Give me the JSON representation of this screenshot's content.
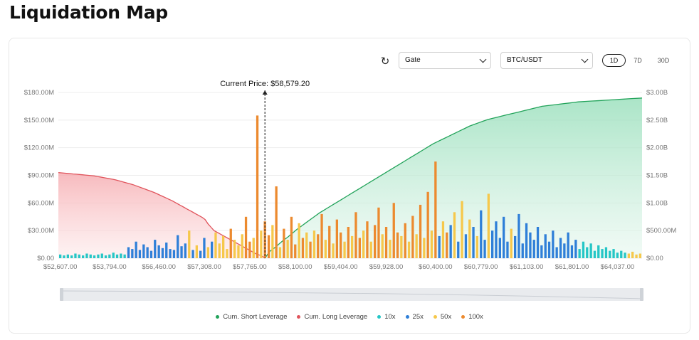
{
  "page": {
    "title": "Liquidation Map"
  },
  "controls": {
    "exchange": "Gate",
    "pair": "BTC/USDT",
    "ranges": [
      "1D",
      "7D",
      "30D"
    ],
    "active_range": "1D"
  },
  "colors": {
    "short": "#22a35a",
    "long": "#e0545c",
    "x10": "#25c6c6",
    "x25": "#2f7fd8",
    "x50": "#f6c84b",
    "x100": "#ec8a2f"
  },
  "chart_data": {
    "type": "bar",
    "title": "",
    "current_price_label": "Current Price: $58,579.20",
    "current_price_index": 54,
    "x_tick_labels": [
      "$52,607.00",
      "$53,794.00",
      "$56,460.00",
      "$57,308.00",
      "$57,765.00",
      "$58,100.00",
      "$59,404.00",
      "$59,928.00",
      "$60,400.00",
      "$60,779.00",
      "$61,103.00",
      "$61,801.00",
      "$64,037.00"
    ],
    "x_tick_indices": [
      0,
      13,
      26,
      38,
      50,
      62,
      74,
      86,
      99,
      111,
      123,
      135,
      147
    ],
    "y_left_ticks": [
      "$0.00",
      "$30.00M",
      "$60.00M",
      "$90.00M",
      "$120.00M",
      "$150.00M",
      "$180.00M"
    ],
    "y_right_ticks": [
      "$0.00",
      "$500.00M",
      "$1.00B",
      "$1.50B",
      "$2.00B",
      "$2.50B",
      "$3.00B"
    ],
    "y_left_range": [
      0,
      180
    ],
    "y_right_range": [
      0,
      3000
    ],
    "y_left_unit": "$M",
    "y_right_unit": "$M",
    "bar_leverage": [
      "10x",
      "10x",
      "10x",
      "10x",
      "10x",
      "10x",
      "10x",
      "10x",
      "10x",
      "10x",
      "10x",
      "10x",
      "10x",
      "10x",
      "10x",
      "10x",
      "10x",
      "10x",
      "25x",
      "25x",
      "25x",
      "25x",
      "25x",
      "25x",
      "25x",
      "25x",
      "25x",
      "25x",
      "25x",
      "25x",
      "25x",
      "25x",
      "25x",
      "25x",
      "50x",
      "25x",
      "50x",
      "25x",
      "25x",
      "50x",
      "25x",
      "50x",
      "50x",
      "50x",
      "50x",
      "100x",
      "50x",
      "50x",
      "50x",
      "100x",
      "100x",
      "50x",
      "100x",
      "50x",
      "100x",
      "100x",
      "50x",
      "100x",
      "50x",
      "100x",
      "50x",
      "100x",
      "100x",
      "50x",
      "100x",
      "50x",
      "100x",
      "50x",
      "100x",
      "100x",
      "50x",
      "100x",
      "50x",
      "100x",
      "100x",
      "50x",
      "100x",
      "50x",
      "100x",
      "100x",
      "50x",
      "100x",
      "50x",
      "100x",
      "100x",
      "50x",
      "100x",
      "50x",
      "100x",
      "100x",
      "50x",
      "100x",
      "50x",
      "100x",
      "50x",
      "100x",
      "50x",
      "100x",
      "50x",
      "100x",
      "25x",
      "50x",
      "100x",
      "25x",
      "50x",
      "25x",
      "50x",
      "25x",
      "50x",
      "25x",
      "50x",
      "25x",
      "25x",
      "50x",
      "25x",
      "25x",
      "25x",
      "25x",
      "25x",
      "50x",
      "25x",
      "25x",
      "25x",
      "25x",
      "25x",
      "25x",
      "25x",
      "25x",
      "25x",
      "25x",
      "25x",
      "25x",
      "25x",
      "25x",
      "25x",
      "25x",
      "25x",
      "10x",
      "10x",
      "10x",
      "10x",
      "10x",
      "10x",
      "10x",
      "10x",
      "10x",
      "10x",
      "10x",
      "10x",
      "10x"
    ],
    "bar_values": [
      4,
      3,
      4,
      3,
      5,
      4,
      3,
      5,
      4,
      3,
      4,
      5,
      3,
      4,
      6,
      4,
      5,
      4,
      12,
      10,
      18,
      9,
      15,
      12,
      8,
      20,
      14,
      11,
      17,
      10,
      9,
      25,
      13,
      16,
      30,
      9,
      14,
      8,
      22,
      12,
      18,
      28,
      16,
      24,
      10,
      32,
      20,
      14,
      26,
      45,
      18,
      22,
      155,
      30,
      40,
      25,
      36,
      78,
      12,
      32,
      20,
      45,
      15,
      38,
      22,
      28,
      18,
      30,
      26,
      48,
      20,
      35,
      16,
      42,
      28,
      18,
      34,
      24,
      50,
      22,
      30,
      40,
      18,
      36,
      55,
      26,
      34,
      20,
      60,
      28,
      24,
      38,
      18,
      46,
      26,
      58,
      22,
      72,
      30,
      105,
      24,
      40,
      28,
      36,
      50,
      18,
      62,
      26,
      42,
      34,
      24,
      52,
      20,
      70,
      30,
      40,
      22,
      45,
      18,
      32,
      24,
      48,
      16,
      38,
      28,
      20,
      34,
      14,
      26,
      18,
      30,
      12,
      22,
      16,
      28,
      14,
      20,
      10,
      18,
      12,
      16,
      8,
      14,
      10,
      12,
      8,
      10,
      6,
      8,
      6,
      5,
      7,
      4,
      5
    ],
    "cum_long_values": [
      1550,
      1545,
      1540,
      1535,
      1530,
      1525,
      1520,
      1515,
      1510,
      1505,
      1500,
      1495,
      1490,
      1480,
      1470,
      1460,
      1450,
      1440,
      1430,
      1420,
      1405,
      1390,
      1375,
      1360,
      1345,
      1330,
      1310,
      1290,
      1270,
      1250,
      1230,
      1210,
      1190,
      1165,
      1140,
      1115,
      1090,
      1065,
      1040,
      1010,
      980,
      950,
      920,
      890,
      860,
      830,
      800,
      770,
      740,
      700,
      620,
      560,
      500,
      470,
      440,
      410,
      380,
      350,
      320,
      290,
      260,
      230,
      200,
      170,
      140,
      110,
      80,
      60,
      40,
      0
    ],
    "cum_short_values": [
      0,
      120,
      180,
      250,
      320,
      380,
      450,
      520,
      580,
      640,
      700,
      760,
      820,
      870,
      920,
      970,
      1020,
      1070,
      1120,
      1170,
      1220,
      1270,
      1320,
      1370,
      1420,
      1470,
      1520,
      1570,
      1620,
      1670,
      1720,
      1770,
      1820,
      1870,
      1920,
      1970,
      2020,
      2070,
      2110,
      2150,
      2190,
      2230,
      2270,
      2310,
      2350,
      2390,
      2420,
      2450,
      2480,
      2510,
      2530,
      2550,
      2570,
      2590,
      2610,
      2630,
      2650,
      2670,
      2690,
      2710,
      2730,
      2750,
      2760,
      2770,
      2780,
      2790,
      2800,
      2810,
      2820,
      2830,
      2835,
      2840,
      2845,
      2850,
      2855,
      2860,
      2865,
      2870,
      2875,
      2880,
      2885,
      2890,
      2895,
      2900
    ],
    "series": [
      {
        "name": "Cum. Short Leverage",
        "color_key": "short"
      },
      {
        "name": "Cum. Long Leverage",
        "color_key": "long"
      },
      {
        "name": "10x",
        "color_key": "x10"
      },
      {
        "name": "25x",
        "color_key": "x25"
      },
      {
        "name": "50x",
        "color_key": "x50"
      },
      {
        "name": "100x",
        "color_key": "x100"
      }
    ],
    "legend_position": "bottom",
    "grid": true
  }
}
